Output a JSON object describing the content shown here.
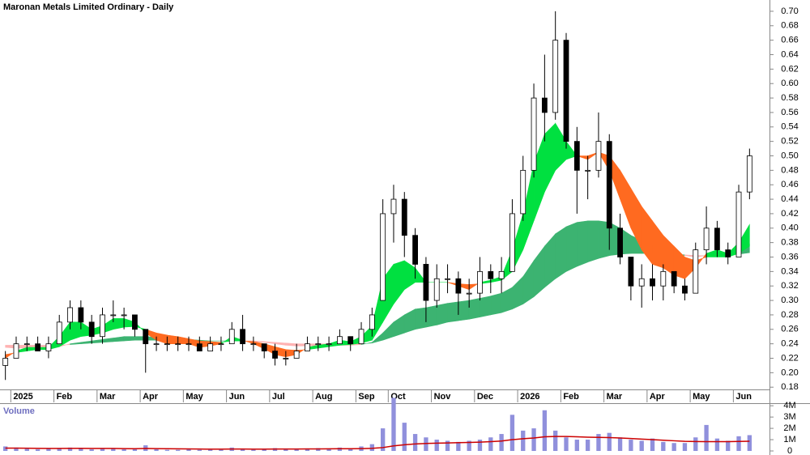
{
  "chart_data": [
    {
      "type": "candlestick",
      "title": "Maronan Metals Limited Ordinary - Daily",
      "categories": [
        null,
        "2025",
        null,
        null,
        null,
        "Feb",
        null,
        null,
        null,
        "Mar",
        null,
        null,
        null,
        "Apr",
        null,
        null,
        null,
        "May",
        null,
        null,
        null,
        "Jun",
        null,
        null,
        null,
        "Jul",
        null,
        null,
        null,
        "Aug",
        null,
        null,
        null,
        "Sep",
        null,
        null,
        "Oct",
        null,
        null,
        null,
        "Nov",
        null,
        null,
        null,
        "Dec",
        null,
        null,
        null,
        "2026",
        null,
        null,
        null,
        "Feb",
        null,
        null,
        null,
        "Mar",
        null,
        null,
        null,
        "Apr",
        null,
        null,
        null,
        "May",
        null,
        null,
        null,
        "Jun",
        null
      ],
      "open": [
        0.21,
        0.22,
        0.24,
        0.24,
        0.23,
        0.24,
        0.27,
        0.29,
        0.27,
        0.25,
        0.28,
        0.28,
        0.28,
        0.26,
        0.24,
        0.24,
        0.24,
        0.24,
        0.24,
        0.23,
        0.24,
        0.24,
        0.26,
        0.24,
        0.24,
        0.23,
        0.22,
        0.22,
        0.23,
        0.24,
        0.24,
        0.24,
        0.25,
        0.24,
        0.26,
        0.3,
        0.42,
        0.44,
        0.39,
        0.35,
        0.3,
        0.33,
        0.33,
        0.31,
        0.31,
        0.34,
        0.33,
        0.34,
        0.42,
        0.48,
        0.58,
        0.56,
        0.66,
        0.52,
        0.48,
        0.48,
        0.52,
        0.4,
        0.36,
        0.32,
        0.33,
        0.32,
        0.34,
        0.32,
        0.31,
        0.37,
        0.4,
        0.37,
        0.36,
        0.45
      ],
      "high": [
        0.23,
        0.25,
        0.25,
        0.25,
        0.25,
        0.28,
        0.3,
        0.3,
        0.28,
        0.29,
        0.3,
        0.29,
        0.28,
        0.26,
        0.25,
        0.25,
        0.25,
        0.25,
        0.25,
        0.25,
        0.25,
        0.27,
        0.28,
        0.25,
        0.24,
        0.24,
        0.23,
        0.24,
        0.25,
        0.25,
        0.25,
        0.26,
        0.25,
        0.27,
        0.29,
        0.44,
        0.46,
        0.45,
        0.4,
        0.36,
        0.35,
        0.35,
        0.34,
        0.33,
        0.36,
        0.35,
        0.36,
        0.44,
        0.5,
        0.6,
        0.64,
        0.7,
        0.67,
        0.54,
        0.5,
        0.56,
        0.53,
        0.42,
        0.36,
        0.35,
        0.35,
        0.35,
        0.34,
        0.33,
        0.38,
        0.43,
        0.41,
        0.38,
        0.46,
        0.51
      ],
      "low": [
        0.19,
        0.22,
        0.23,
        0.23,
        0.22,
        0.24,
        0.26,
        0.26,
        0.24,
        0.24,
        0.27,
        0.26,
        0.25,
        0.2,
        0.23,
        0.23,
        0.23,
        0.23,
        0.23,
        0.23,
        0.23,
        0.24,
        0.23,
        0.23,
        0.22,
        0.21,
        0.21,
        0.22,
        0.23,
        0.23,
        0.23,
        0.24,
        0.23,
        0.24,
        0.25,
        0.3,
        0.38,
        0.36,
        0.33,
        0.27,
        0.29,
        0.31,
        0.28,
        0.29,
        0.3,
        0.31,
        0.31,
        0.34,
        0.41,
        0.47,
        0.52,
        0.55,
        0.51,
        0.42,
        0.44,
        0.47,
        0.37,
        0.35,
        0.3,
        0.29,
        0.3,
        0.3,
        0.31,
        0.3,
        0.31,
        0.35,
        0.36,
        0.35,
        0.36,
        0.44
      ],
      "close": [
        0.22,
        0.24,
        0.24,
        0.23,
        0.24,
        0.27,
        0.29,
        0.27,
        0.25,
        0.28,
        0.28,
        0.28,
        0.26,
        0.24,
        0.24,
        0.24,
        0.24,
        0.24,
        0.23,
        0.24,
        0.24,
        0.26,
        0.24,
        0.24,
        0.23,
        0.22,
        0.22,
        0.23,
        0.24,
        0.24,
        0.24,
        0.25,
        0.24,
        0.26,
        0.28,
        0.42,
        0.44,
        0.39,
        0.35,
        0.3,
        0.33,
        0.33,
        0.31,
        0.31,
        0.34,
        0.33,
        0.34,
        0.42,
        0.48,
        0.58,
        0.56,
        0.66,
        0.52,
        0.48,
        0.48,
        0.52,
        0.4,
        0.36,
        0.32,
        0.33,
        0.32,
        0.34,
        0.32,
        0.31,
        0.37,
        0.4,
        0.37,
        0.36,
        0.45,
        0.5
      ],
      "bands": [
        {
          "color_up": "#3cb371",
          "color_down": "#ffb3b3",
          "values_a": [
            0.235,
            0.234,
            0.234,
            0.234,
            0.234,
            0.236,
            0.24,
            0.242,
            0.244,
            0.246,
            0.248,
            0.25,
            0.25,
            0.25,
            0.249,
            0.248,
            0.247,
            0.246,
            0.245,
            0.244,
            0.244,
            0.244,
            0.244,
            0.243,
            0.242,
            0.24,
            0.238,
            0.237,
            0.237,
            0.237,
            0.238,
            0.238,
            0.238,
            0.239,
            0.242,
            0.255,
            0.27,
            0.28,
            0.288,
            0.29,
            0.293,
            0.296,
            0.298,
            0.3,
            0.303,
            0.306,
            0.31,
            0.318,
            0.333,
            0.355,
            0.375,
            0.392,
            0.402,
            0.408,
            0.41,
            0.41,
            0.408,
            0.4,
            0.39,
            0.383,
            0.377,
            0.372,
            0.367,
            0.362,
            0.36,
            0.362,
            0.363,
            0.363,
            0.367,
            0.378
          ],
          "values_b": [
            0.238,
            0.238,
            0.238,
            0.238,
            0.238,
            0.238,
            0.239,
            0.24,
            0.241,
            0.242,
            0.243,
            0.244,
            0.245,
            0.245,
            0.245,
            0.245,
            0.245,
            0.245,
            0.244,
            0.244,
            0.244,
            0.244,
            0.244,
            0.244,
            0.243,
            0.242,
            0.241,
            0.24,
            0.24,
            0.24,
            0.24,
            0.24,
            0.24,
            0.24,
            0.241,
            0.245,
            0.25,
            0.255,
            0.26,
            0.263,
            0.266,
            0.27,
            0.272,
            0.274,
            0.277,
            0.28,
            0.283,
            0.288,
            0.295,
            0.305,
            0.318,
            0.33,
            0.34,
            0.347,
            0.353,
            0.358,
            0.362,
            0.364,
            0.365,
            0.365,
            0.365,
            0.365,
            0.364,
            0.363,
            0.362,
            0.362,
            0.362,
            0.363,
            0.364,
            0.366
          ]
        },
        {
          "color_up": "#00e040",
          "color_down": "#ff6a20",
          "values_a": [
            0.22,
            0.23,
            0.235,
            0.235,
            0.235,
            0.25,
            0.27,
            0.27,
            0.26,
            0.265,
            0.275,
            0.275,
            0.27,
            0.255,
            0.245,
            0.24,
            0.24,
            0.24,
            0.235,
            0.237,
            0.24,
            0.25,
            0.245,
            0.24,
            0.233,
            0.225,
            0.222,
            0.225,
            0.235,
            0.238,
            0.24,
            0.245,
            0.243,
            0.25,
            0.265,
            0.33,
            0.35,
            0.355,
            0.345,
            0.325,
            0.325,
            0.325,
            0.32,
            0.315,
            0.325,
            0.328,
            0.333,
            0.37,
            0.42,
            0.49,
            0.53,
            0.545,
            0.52,
            0.5,
            0.495,
            0.505,
            0.48,
            0.44,
            0.4,
            0.37,
            0.35,
            0.345,
            0.335,
            0.33,
            0.345,
            0.365,
            0.37,
            0.365,
            0.38,
            0.405
          ],
          "values_b": [
            0.225,
            0.228,
            0.23,
            0.232,
            0.232,
            0.236,
            0.245,
            0.25,
            0.252,
            0.255,
            0.26,
            0.263,
            0.264,
            0.26,
            0.255,
            0.252,
            0.25,
            0.247,
            0.244,
            0.243,
            0.242,
            0.244,
            0.244,
            0.243,
            0.24,
            0.236,
            0.232,
            0.231,
            0.232,
            0.234,
            0.236,
            0.238,
            0.239,
            0.241,
            0.245,
            0.27,
            0.295,
            0.315,
            0.325,
            0.325,
            0.325,
            0.325,
            0.323,
            0.322,
            0.323,
            0.325,
            0.328,
            0.34,
            0.37,
            0.41,
            0.45,
            0.48,
            0.495,
            0.5,
            0.5,
            0.505,
            0.5,
            0.48,
            0.455,
            0.43,
            0.41,
            0.39,
            0.375,
            0.36,
            0.355,
            0.36,
            0.36,
            0.36,
            0.365,
            0.375
          ]
        }
      ],
      "ylim": [
        0.178,
        0.71
      ],
      "yticks": [
        {
          "value": 0.18,
          "label": "0.18"
        },
        {
          "value": 0.2,
          "label": "0.20"
        },
        {
          "value": 0.22,
          "label": "0.22"
        },
        {
          "value": 0.24,
          "label": "0.24"
        },
        {
          "value": 0.26,
          "label": "0.26"
        },
        {
          "value": 0.28,
          "label": "0.28"
        },
        {
          "value": 0.3,
          "label": "0.30"
        },
        {
          "value": 0.32,
          "label": "0.32"
        },
        {
          "value": 0.34,
          "label": "0.34"
        },
        {
          "value": 0.36,
          "label": "0.36"
        },
        {
          "value": 0.38,
          "label": "0.38"
        },
        {
          "value": 0.4,
          "label": "0.40"
        },
        {
          "value": 0.42,
          "label": "0.42"
        },
        {
          "value": 0.44,
          "label": "0.44"
        },
        {
          "value": 0.46,
          "label": "0.46"
        },
        {
          "value": 0.48,
          "label": "0.48"
        },
        {
          "value": 0.5,
          "label": "0.50"
        },
        {
          "value": 0.52,
          "label": "0.52"
        },
        {
          "value": 0.54,
          "label": "0.54"
        },
        {
          "value": 0.56,
          "label": "0.56"
        },
        {
          "value": 0.58,
          "label": "0.58"
        },
        {
          "value": 0.6,
          "label": "0.60"
        },
        {
          "value": 0.62,
          "label": "0.62"
        },
        {
          "value": 0.64,
          "label": "0.64"
        },
        {
          "value": 0.66,
          "label": "0.66"
        },
        {
          "value": 0.68,
          "label": "0.68"
        },
        {
          "value": 0.7,
          "label": "0.70"
        }
      ]
    },
    {
      "type": "bar",
      "title": "Volume",
      "color": "#9090dc",
      "values": [
        400000,
        300000,
        200000,
        150000,
        200000,
        250000,
        300000,
        200000,
        150000,
        200000,
        250000,
        150000,
        150000,
        500000,
        150000,
        100000,
        100000,
        150000,
        100000,
        100000,
        100000,
        300000,
        200000,
        100000,
        150000,
        250000,
        150000,
        150000,
        200000,
        250000,
        200000,
        300000,
        200000,
        400000,
        600000,
        2000000,
        4700000,
        2500000,
        1500000,
        1200000,
        1000000,
        900000,
        800000,
        900000,
        1000000,
        1200000,
        1500000,
        3200000,
        1800000,
        2000000,
        3600000,
        1800000,
        1200000,
        1000000,
        1000000,
        1500000,
        1600000,
        1200000,
        1000000,
        900000,
        1100000,
        800000,
        700000,
        700000,
        1200000,
        2300000,
        1100000,
        900000,
        1300000,
        1400000
      ],
      "line": {
        "color": "#cc0000",
        "values": [
          250000,
          250000,
          240000,
          230000,
          220000,
          220000,
          230000,
          230000,
          220000,
          220000,
          220000,
          210000,
          200000,
          220000,
          210000,
          200000,
          190000,
          180000,
          170000,
          160000,
          160000,
          170000,
          170000,
          165000,
          165000,
          170000,
          170000,
          170000,
          175000,
          180000,
          185000,
          195000,
          200000,
          210000,
          230000,
          300000,
          450000,
          550000,
          620000,
          660000,
          690000,
          710000,
          730000,
          750000,
          780000,
          820000,
          880000,
          1000000,
          1080000,
          1150000,
          1250000,
          1280000,
          1280000,
          1250000,
          1220000,
          1200000,
          1180000,
          1150000,
          1100000,
          1050000,
          1000000,
          950000,
          900000,
          850000,
          830000,
          820000,
          820000,
          820000,
          840000,
          860000
        ]
      },
      "ylim": [
        0,
        4800000
      ],
      "yticks": [
        0,
        {
          "value": 1000000,
          "label": "1M"
        },
        {
          "value": 2000000,
          "label": "2M"
        },
        {
          "value": 3000000,
          "label": "3M"
        },
        {
          "value": 4000000,
          "label": "4M"
        }
      ]
    }
  ]
}
